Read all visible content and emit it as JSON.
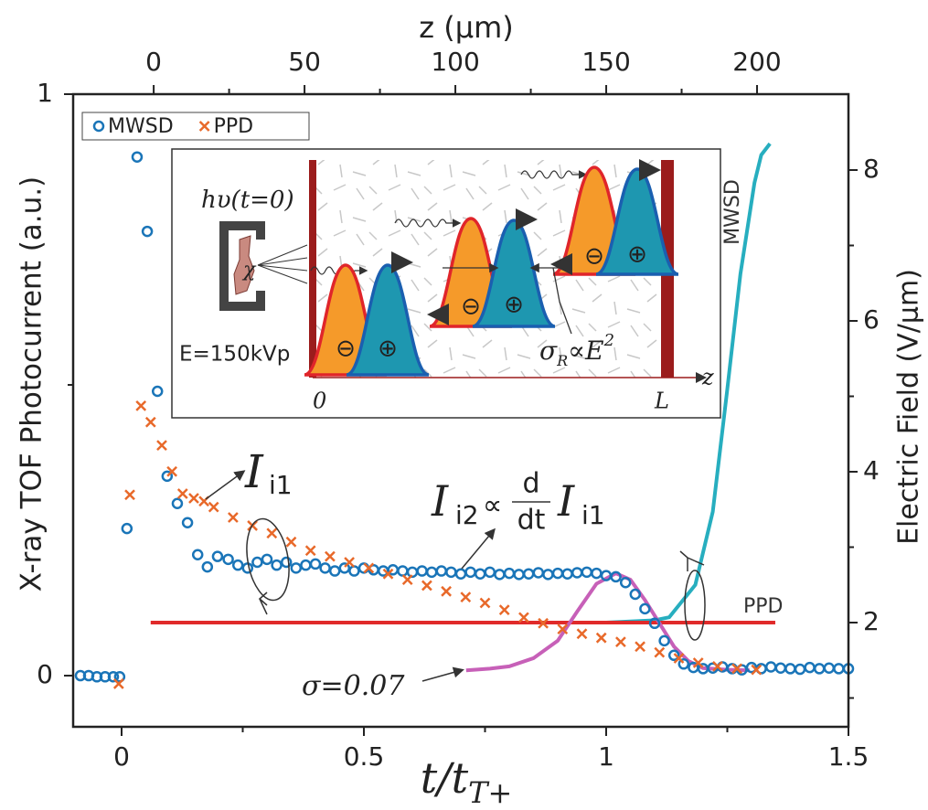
{
  "chart_data": {
    "type": "scatter",
    "xlabel": [
      "t/t",
      "T+"
    ],
    "x2label": "z (μm)",
    "ylabel": "X-ray TOF Photocurrent (a.u.)",
    "y2label": "Electric Field (V/μm)",
    "xlim": [
      -0.1,
      1.5
    ],
    "xticks": [
      0,
      0.5,
      1,
      1.5
    ],
    "xminorticks": [
      0.25,
      0.75,
      1.25
    ],
    "x2lim": [
      -26.7,
      230.3
    ],
    "x2ticks": [
      0,
      50,
      100,
      150,
      200
    ],
    "x2minorticks": [
      25,
      75,
      125,
      175
    ],
    "ylim": [
      -0.088,
      1
    ],
    "yticks": [
      0,
      1
    ],
    "yminorticks": [
      0.5
    ],
    "y2lim": [
      0.618,
      9.006
    ],
    "y2ticks": [
      2,
      4,
      6,
      8
    ],
    "y2minorticks": [
      1,
      3,
      5,
      7
    ],
    "series": [
      {
        "name": "MWSD",
        "color": "#1a75b8",
        "kind": "scatter",
        "marker": "o",
        "in_legend": true,
        "x": [
          -0.085,
          -0.068,
          -0.051,
          -0.034,
          -0.017,
          -0.004,
          0.011,
          0.032,
          0.053,
          0.074,
          0.094,
          0.115,
          0.136,
          0.157,
          0.177,
          0.198,
          0.22,
          0.24,
          0.26,
          0.28,
          0.3,
          0.32,
          0.34,
          0.36,
          0.38,
          0.4,
          0.42,
          0.44,
          0.46,
          0.48,
          0.5,
          0.52,
          0.54,
          0.56,
          0.58,
          0.6,
          0.62,
          0.64,
          0.66,
          0.68,
          0.7,
          0.72,
          0.74,
          0.76,
          0.78,
          0.8,
          0.82,
          0.84,
          0.86,
          0.88,
          0.9,
          0.92,
          0.94,
          0.96,
          0.98,
          1.0,
          1.02,
          1.04,
          1.06,
          1.08,
          1.1,
          1.12,
          1.14,
          1.16,
          1.18,
          1.2,
          1.22,
          1.24,
          1.26,
          1.28,
          1.3,
          1.32,
          1.34,
          1.36,
          1.38,
          1.4,
          1.42,
          1.44,
          1.46,
          1.48,
          1.5
        ],
        "values": [
          0.0,
          0.0,
          -0.002,
          -0.002,
          -0.002,
          -0.002,
          0.253,
          0.892,
          0.764,
          0.489,
          0.343,
          0.296,
          0.263,
          0.208,
          0.187,
          0.205,
          0.2,
          0.19,
          0.185,
          0.195,
          0.2,
          0.19,
          0.195,
          0.185,
          0.19,
          0.192,
          0.185,
          0.18,
          0.185,
          0.18,
          0.185,
          0.182,
          0.18,
          0.182,
          0.18,
          0.178,
          0.18,
          0.178,
          0.18,
          0.178,
          0.175,
          0.178,
          0.175,
          0.178,
          0.174,
          0.176,
          0.174,
          0.175,
          0.177,
          0.174,
          0.176,
          0.175,
          0.177,
          0.178,
          0.176,
          0.172,
          0.17,
          0.16,
          0.14,
          0.115,
          0.09,
          0.06,
          0.035,
          0.02,
          0.014,
          0.012,
          0.013,
          0.015,
          0.012,
          0.01,
          0.014,
          0.012,
          0.015,
          0.013,
          0.012,
          0.011,
          0.014,
          0.012,
          0.013,
          0.012,
          0.012
        ]
      },
      {
        "name": "PPD",
        "color": "#e8692a",
        "kind": "scatter",
        "marker": "x",
        "in_legend": true,
        "x": [
          -0.006,
          0.017,
          0.04,
          0.06,
          0.083,
          0.104,
          0.126,
          0.149,
          0.17,
          0.19,
          0.23,
          0.27,
          0.31,
          0.35,
          0.39,
          0.43,
          0.47,
          0.51,
          0.55,
          0.59,
          0.63,
          0.67,
          0.71,
          0.75,
          0.79,
          0.83,
          0.87,
          0.91,
          0.95,
          0.99,
          1.03,
          1.07,
          1.11,
          1.15,
          1.19,
          1.23,
          1.27,
          1.31
        ],
        "values": [
          -0.014,
          0.311,
          0.464,
          0.436,
          0.396,
          0.351,
          0.313,
          0.305,
          0.3,
          0.29,
          0.272,
          0.258,
          0.245,
          0.23,
          0.215,
          0.205,
          0.195,
          0.185,
          0.175,
          0.165,
          0.155,
          0.145,
          0.135,
          0.125,
          0.113,
          0.1,
          0.09,
          0.08,
          0.072,
          0.065,
          0.058,
          0.05,
          0.04,
          0.03,
          0.022,
          0.016,
          0.012,
          0.01
        ]
      },
      {
        "name": "MWSD",
        "color": "#27aebf",
        "kind": "line",
        "axis": "y2",
        "in_legend": false,
        "x": [
          0.86,
          1.0,
          1.1,
          1.13,
          1.184,
          1.22,
          1.249,
          1.277,
          1.306,
          1.32,
          1.338
        ],
        "values": [
          2.0,
          2.0,
          2.03,
          2.07,
          2.5,
          3.47,
          5.04,
          6.62,
          7.83,
          8.2,
          8.35
        ]
      },
      {
        "name": "PPD",
        "color": "#e02a2a",
        "kind": "line",
        "axis": "y2",
        "in_legend": false,
        "x": [
          0.06,
          1.349
        ],
        "values": [
          2.0,
          2.0
        ]
      },
      {
        "name": "σ=0.07",
        "color": "#c760b8",
        "kind": "line",
        "in_legend": false,
        "x": [
          0.711,
          0.76,
          0.8,
          0.85,
          0.9,
          0.94,
          0.98,
          1.02,
          1.05,
          1.08,
          1.11,
          1.14,
          1.17,
          1.2,
          1.25,
          1.296
        ],
        "values": [
          0.009,
          0.012,
          0.016,
          0.03,
          0.06,
          0.11,
          0.158,
          0.176,
          0.165,
          0.13,
          0.09,
          0.05,
          0.025,
          0.013,
          0.01,
          0.009
        ]
      }
    ],
    "annotations": {
      "ii1": [
        "I",
        "i1"
      ],
      "ii2": [
        "I",
        "i2",
        "∝",
        "d",
        "dt",
        "I",
        "i1"
      ]
    },
    "inset": {
      "source": "hυ(t=0)",
      "chi": "χ",
      "voltage": "E=150kVp",
      "sigma": [
        "σ",
        "R",
        "∝E",
        "2"
      ],
      "origin": "0",
      "end": "L",
      "axis": "z",
      "minus": "⊖",
      "plus": "⊕"
    }
  }
}
